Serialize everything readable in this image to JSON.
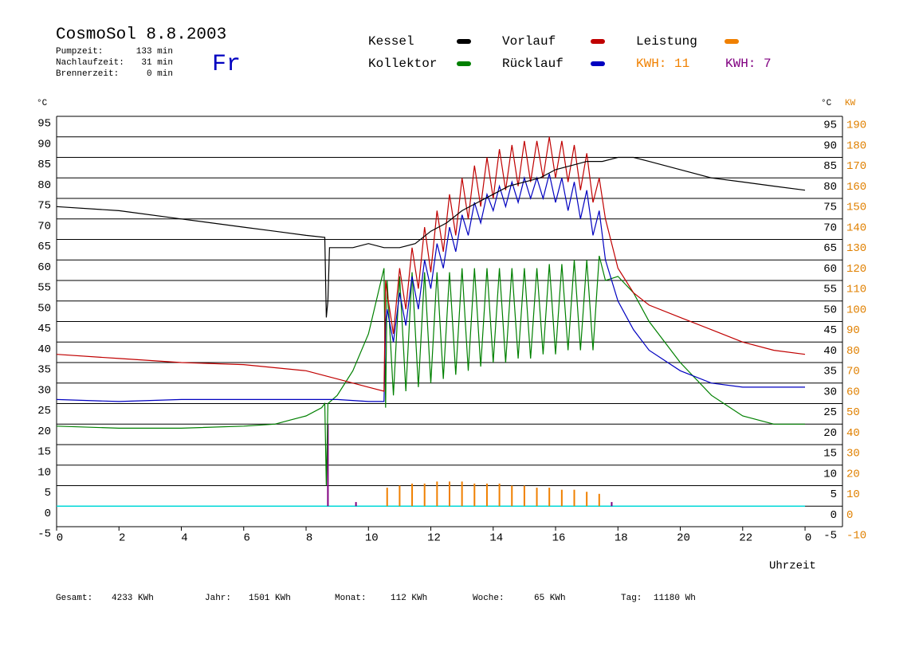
{
  "chart_data": {
    "type": "line",
    "title": "CosmoSol 8.8.2003",
    "day": "Fr",
    "info": [
      {
        "label": "Pumpzeit:",
        "value": "133 min"
      },
      {
        "label": "Nachlaufzeit:",
        "value": "31 min"
      },
      {
        "label": "Brennerzeit:",
        "value": "0 min"
      }
    ],
    "annotations": [
      {
        "text": "KWH: 11",
        "color": "#f08000"
      },
      {
        "text": "KWH: 7",
        "color": "#800080"
      }
    ],
    "y_label": "°C",
    "y_label_right": "°C",
    "y2_label": "KW",
    "x_label": "Uhrzeit",
    "totals": [
      {
        "label": "Gesamt:",
        "value": "4233 KWh"
      },
      {
        "label": "Jahr:",
        "value": "1501 KWh"
      },
      {
        "label": "Monat:",
        "value": "112 KWh"
      },
      {
        "label": "Woche:",
        "value": "65 KWh"
      },
      {
        "label": "Tag:",
        "value": "11180 Wh"
      }
    ],
    "xlim": [
      0,
      25.2
    ],
    "xticks": [
      0,
      2,
      4,
      6,
      8,
      10,
      12,
      14,
      16,
      18,
      20,
      22,
      {
        "value": 24,
        "label": "0"
      }
    ],
    "ylim": [
      -5,
      95
    ],
    "yticks": [
      -5,
      0,
      5,
      10,
      15,
      20,
      25,
      30,
      35,
      40,
      45,
      50,
      55,
      60,
      65,
      70,
      75,
      80,
      85,
      90,
      95
    ],
    "y2lim": [
      -10,
      190
    ],
    "y2ticks": [
      -10,
      0,
      10,
      20,
      30,
      40,
      50,
      60,
      70,
      80,
      90,
      100,
      110,
      120,
      130,
      140,
      150,
      160,
      170,
      180,
      190
    ],
    "grid": true,
    "baseline_color": "#00d8d8",
    "series": [
      {
        "name": "Kessel",
        "color": "#000000",
        "style": "line",
        "x": [
          0,
          2,
          4,
          6,
          7,
          8,
          8.6,
          8.65,
          8.7,
          8.75,
          9.5,
          10,
          10.5,
          11,
          11.5,
          12,
          12.5,
          13,
          13.5,
          14,
          14.5,
          15,
          15.5,
          16,
          16.5,
          17,
          17.5,
          18,
          18.5,
          19,
          20,
          21,
          22,
          23,
          24
        ],
        "values": [
          73,
          72,
          70,
          68,
          67,
          66,
          65.5,
          46,
          50,
          63,
          63,
          64,
          63,
          63,
          64,
          67,
          69,
          72,
          74,
          76,
          78,
          79,
          80,
          82,
          83,
          84,
          84,
          85,
          85,
          84,
          82,
          80,
          79,
          78,
          77
        ]
      },
      {
        "name": "Kollektor",
        "color": "#008000",
        "style": "line",
        "x": [
          0,
          2,
          4,
          6,
          7,
          7.5,
          8,
          8.5,
          8.6,
          8.65,
          8.7,
          9,
          9.5,
          10,
          10.5,
          10.55,
          10.6,
          10.8,
          11,
          11.2,
          11.4,
          11.6,
          11.8,
          12,
          12.2,
          12.4,
          12.6,
          12.8,
          13,
          13.2,
          13.4,
          13.6,
          13.8,
          14,
          14.2,
          14.4,
          14.6,
          14.8,
          15,
          15.2,
          15.4,
          15.6,
          15.8,
          16,
          16.2,
          16.4,
          16.6,
          16.8,
          17,
          17.2,
          17.4,
          17.6,
          18,
          18.5,
          19,
          20,
          21,
          22,
          23,
          24
        ],
        "values": [
          19.5,
          19,
          19,
          19.5,
          20,
          21,
          22,
          24,
          25,
          5,
          25,
          27,
          33,
          42,
          58,
          24,
          55,
          27,
          56,
          28,
          57,
          29,
          57,
          30,
          57,
          31,
          57,
          32,
          58,
          33,
          58,
          34,
          58,
          35,
          58,
          35,
          58,
          36,
          58,
          36,
          58,
          37,
          59,
          37,
          59,
          38,
          60,
          38,
          60,
          38,
          61,
          55,
          56,
          52,
          45,
          35,
          27,
          22,
          20,
          20
        ]
      },
      {
        "name": "Vorlauf",
        "color": "#c00000",
        "style": "line",
        "x": [
          0,
          2,
          4,
          6,
          8,
          9,
          10,
          10.5,
          10.55,
          10.6,
          10.8,
          11,
          11.2,
          11.4,
          11.6,
          11.8,
          12,
          12.2,
          12.4,
          12.6,
          12.8,
          13,
          13.2,
          13.4,
          13.6,
          13.8,
          14,
          14.2,
          14.4,
          14.6,
          14.8,
          15,
          15.2,
          15.4,
          15.6,
          15.8,
          16,
          16.2,
          16.4,
          16.6,
          16.8,
          17,
          17.2,
          17.4,
          17.6,
          18,
          18.5,
          19,
          20,
          21,
          22,
          23,
          24
        ],
        "values": [
          37,
          36,
          35,
          34.5,
          33,
          31,
          29,
          28,
          55,
          52,
          42,
          58,
          48,
          63,
          53,
          68,
          57,
          72,
          62,
          76,
          66,
          80,
          70,
          83,
          73,
          85,
          75,
          87,
          77,
          88,
          78,
          89,
          79,
          89,
          80,
          90,
          80,
          89,
          79,
          88,
          77,
          86,
          74,
          80,
          70,
          58,
          52,
          49,
          46,
          43,
          40,
          38,
          37
        ]
      },
      {
        "name": "Rücklauf",
        "color": "#0000c0",
        "style": "line",
        "x": [
          0,
          2,
          4,
          6,
          8,
          9,
          10,
          10.5,
          10.55,
          10.6,
          10.8,
          11,
          11.2,
          11.4,
          11.6,
          11.8,
          12,
          12.2,
          12.4,
          12.6,
          12.8,
          13,
          13.2,
          13.4,
          13.6,
          13.8,
          14,
          14.2,
          14.4,
          14.6,
          14.8,
          15,
          15.2,
          15.4,
          15.6,
          15.8,
          16,
          16.2,
          16.4,
          16.6,
          16.8,
          17,
          17.2,
          17.4,
          17.6,
          18,
          18.5,
          19,
          20,
          21,
          22,
          23,
          24
        ],
        "values": [
          26,
          25.5,
          26,
          26,
          26,
          26,
          25.5,
          25.5,
          45,
          48,
          40,
          52,
          44,
          56,
          48,
          60,
          53,
          64,
          58,
          68,
          62,
          71,
          66,
          74,
          69,
          76,
          72,
          78,
          73,
          79,
          74,
          80,
          75,
          80,
          75,
          81,
          74,
          80,
          72,
          79,
          70,
          77,
          66,
          72,
          60,
          50,
          43,
          38,
          33,
          30,
          29,
          29,
          29
        ]
      },
      {
        "name": "Leistung",
        "color": "#f08000",
        "style": "spike",
        "axis": "y2",
        "x": [
          10.6,
          11,
          11.4,
          11.8,
          12.2,
          12.6,
          13,
          13.4,
          13.8,
          14.2,
          14.6,
          15,
          15.4,
          15.8,
          16.2,
          16.6,
          17,
          17.4
        ],
        "values": [
          9,
          10,
          11,
          11,
          12,
          12,
          12,
          11,
          11,
          11,
          10,
          10,
          9,
          9,
          8,
          8,
          7,
          6
        ]
      },
      {
        "color": "#800080",
        "style": "spike",
        "x": [
          8.7,
          9.6,
          17.8
        ],
        "values": [
          20,
          1,
          1
        ]
      }
    ]
  }
}
